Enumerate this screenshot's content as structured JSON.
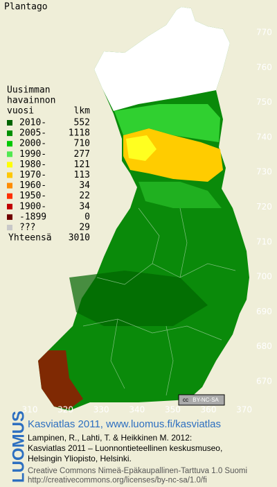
{
  "title": "Plantago",
  "legend": {
    "heading": [
      "Uusimman",
      "havainnon"
    ],
    "year_label": "vuosi",
    "count_label": "lkm",
    "items": [
      {
        "label": "2010-",
        "count": 552,
        "color": "#006400"
      },
      {
        "label": "2005-",
        "count": 1118,
        "color": "#009000"
      },
      {
        "label": "2000-",
        "count": 710,
        "color": "#00c800"
      },
      {
        "label": "1990-",
        "count": 277,
        "color": "#50e850"
      },
      {
        "label": "1980-",
        "count": 121,
        "color": "#ffff00"
      },
      {
        "label": "1970-",
        "count": 113,
        "color": "#ffc800"
      },
      {
        "label": "1960-",
        "count": 34,
        "color": "#ff8c00"
      },
      {
        "label": "1950-",
        "count": 22,
        "color": "#ff3000"
      },
      {
        "label": "1900-",
        "count": 34,
        "color": "#c00000"
      },
      {
        "label": "-1899",
        "count": 0,
        "color": "#700000"
      },
      {
        "label": "???",
        "count": 29,
        "color": "#c8c8c8"
      }
    ],
    "total_label": "Yhteensä",
    "total": 3010
  },
  "axes": {
    "y_ticks": [
      770,
      760,
      750,
      740,
      730,
      720,
      710,
      700,
      690,
      680,
      670
    ],
    "x_ticks": [
      310,
      320,
      330,
      340,
      350,
      360,
      370
    ]
  },
  "badge": {
    "cc": "cc",
    "license": "BY-NC-SA"
  },
  "footer": {
    "logo": "LUOMUS",
    "link": "Kasviatlas 2011, www.luomus.fi/kasviatlas",
    "citation": [
      "Lampinen, R., Lahti, T. & Heikkinen M. 2012:",
      "Kasviatlas 2011 – Luonnontieteellinen keskusmuseo,",
      "Helsingin Yliopisto, Helsinki."
    ],
    "license": [
      "Creative Commons Nimeä-Epäkaupallinen-Tarttuva 1.0 Suomi",
      "http://creativecommons.org/licenses/by-nc-sa/1.0/fi"
    ]
  }
}
